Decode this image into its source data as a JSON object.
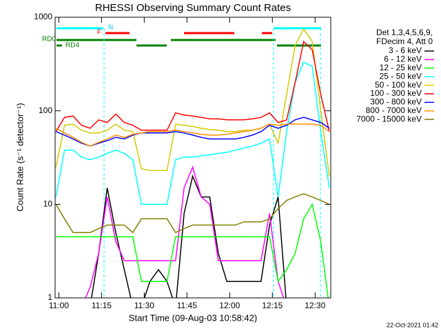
{
  "chart_data": {
    "type": "line",
    "title": "RHESSI Observing Summary Count Rates",
    "x_label": "Start Time (09-Aug-03 10:58:42)",
    "y_label": "Count Rate (s⁻¹ detector⁻¹)",
    "footer": "22-Oct-2021 01:42",
    "legend_header": [
      "Det 1,3,4,5,6,9,",
      "FDecim 4, Att 0"
    ],
    "flags": [
      "N",
      "F",
      "RD0",
      "RD4"
    ],
    "log_y": true,
    "xlim": [
      -1.3,
      95.5
    ],
    "xticks": [
      {
        "value": 0,
        "label": "11:00"
      },
      {
        "value": 15,
        "label": "11:15"
      },
      {
        "value": 30,
        "label": "11:30"
      },
      {
        "value": 45,
        "label": "11:45"
      },
      {
        "value": 60,
        "label": "12:00"
      },
      {
        "value": 75,
        "label": "12:15"
      },
      {
        "value": 90,
        "label": "12:30"
      }
    ],
    "ylim": [
      1,
      1000
    ],
    "yticks": [
      1,
      10,
      100,
      1000
    ],
    "x": [
      -1,
      2,
      5,
      8,
      11,
      14,
      17,
      20,
      23,
      26,
      29,
      32,
      35,
      38,
      41,
      44,
      47,
      50,
      53,
      56,
      59,
      62,
      65,
      68,
      71,
      74,
      77,
      80,
      83,
      86,
      89,
      92,
      95
    ],
    "series": [
      {
        "name": "3 - 6 keV",
        "color": "#000000",
        "values": [
          0.8,
          0.8,
          0.8,
          0.8,
          0.8,
          3,
          15,
          5,
          2,
          0.8,
          0.8,
          1.5,
          2,
          1.5,
          0.8,
          8,
          20,
          12,
          12,
          3,
          1.5,
          1.5,
          1.5,
          1.5,
          1.5,
          6,
          12,
          0.8,
          0.8,
          0.8,
          0.8,
          0.8,
          0.8
        ]
      },
      {
        "name": "6 - 12 keV",
        "color": "#ff00ff",
        "values": [
          0.8,
          0.8,
          0.8,
          0.8,
          1.3,
          3,
          12,
          4,
          2.5,
          2.5,
          2.5,
          2.5,
          2.5,
          2.5,
          2.5,
          15,
          25,
          12,
          10,
          2.5,
          2.5,
          2.5,
          2.5,
          2.5,
          2.5,
          8,
          1.5,
          0.8,
          0.8,
          0.8,
          0.8,
          0.8,
          0.8
        ]
      },
      {
        "name": "12 - 25 keV",
        "color": "#00ff00",
        "values": [
          4.5,
          4.5,
          4.5,
          4.5,
          4.5,
          4.5,
          4.5,
          4.5,
          4.5,
          4.5,
          1.5,
          1.5,
          1.5,
          1.5,
          4.5,
          4.5,
          4.5,
          4.5,
          4.5,
          4.5,
          4.5,
          4.5,
          4.5,
          4.5,
          4.5,
          4.5,
          1.5,
          2,
          3,
          7,
          10,
          4,
          0.8
        ]
      },
      {
        "name": "25 - 50 keV",
        "color": "#00ffff",
        "values": [
          12,
          38,
          38,
          32,
          30,
          32,
          35,
          38,
          35,
          30,
          10,
          10,
          10,
          10,
          30,
          32,
          32,
          33,
          34,
          35,
          36,
          38,
          40,
          42,
          45,
          50,
          12,
          60,
          200,
          330,
          300,
          60,
          15
        ]
      },
      {
        "name": "50 - 100 keV",
        "color": "#d4c800",
        "values": [
          25,
          70,
          72,
          62,
          58,
          58,
          62,
          72,
          62,
          60,
          24,
          23,
          23,
          23,
          72,
          70,
          68,
          65,
          63,
          62,
          60,
          60,
          62,
          62,
          65,
          72,
          45,
          150,
          500,
          750,
          550,
          100,
          20
        ]
      },
      {
        "name": "100 - 300 keV",
        "color": "#ff0000",
        "values": [
          60,
          85,
          88,
          70,
          65,
          80,
          75,
          92,
          75,
          70,
          62,
          62,
          62,
          62,
          95,
          90,
          88,
          85,
          82,
          82,
          80,
          80,
          80,
          82,
          85,
          95,
          75,
          80,
          200,
          550,
          450,
          150,
          60
        ]
      },
      {
        "name": "300 - 800 keV",
        "color": "#0000ff",
        "values": [
          60,
          55,
          50,
          45,
          42,
          45,
          48,
          52,
          50,
          55,
          58,
          58,
          58,
          58,
          60,
          58,
          55,
          52,
          50,
          50,
          50,
          50,
          52,
          55,
          60,
          70,
          65,
          70,
          80,
          85,
          80,
          75,
          65
        ]
      },
      {
        "name": "800 - 7000 keV",
        "color": "#ff8c00",
        "values": [
          65,
          58,
          52,
          46,
          42,
          46,
          50,
          55,
          52,
          56,
          58,
          60,
          60,
          60,
          62,
          60,
          58,
          56,
          55,
          55,
          56,
          58,
          60,
          62,
          65,
          72,
          70,
          72,
          72,
          72,
          72,
          70,
          60
        ]
      },
      {
        "name": "7000 - 15000 keV",
        "color": "#808000",
        "values": [
          10,
          7,
          5,
          5,
          5,
          5.5,
          6,
          6,
          6,
          5,
          7,
          7,
          7,
          7,
          5,
          5.5,
          6,
          6,
          6,
          6,
          6,
          6,
          6.5,
          6.5,
          6.5,
          7,
          9,
          11,
          12,
          13,
          12,
          11,
          10
        ]
      }
    ]
  }
}
